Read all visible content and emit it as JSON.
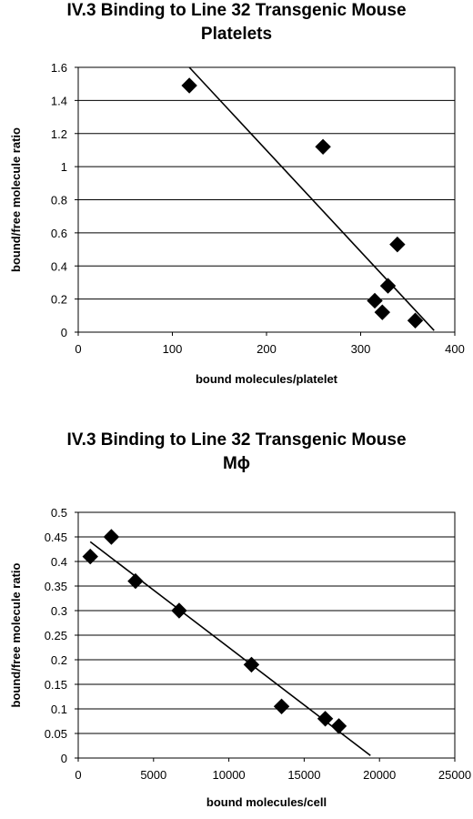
{
  "chart_data": [
    {
      "type": "scatter",
      "title_line1": "IV.3 Binding to Line 32 Transgenic Mouse",
      "title_line2": "Platelets",
      "xlabel": "bound molecules/platelet",
      "ylabel": "bound/free molecule ratio",
      "xlim": [
        0,
        400
      ],
      "ylim": [
        0,
        1.6
      ],
      "xticks": [
        0,
        100,
        200,
        300,
        400
      ],
      "xtick_labels": [
        "0",
        "100",
        "200",
        "300",
        "400"
      ],
      "yticks": [
        0,
        0.2,
        0.4,
        0.6,
        0.8,
        1,
        1.2,
        1.4,
        1.6
      ],
      "ytick_labels": [
        "0",
        "0.2",
        "0.4",
        "0.6",
        "0.8",
        "1",
        "1.2",
        "1.4",
        "1.6"
      ],
      "grid": "horizontal",
      "points": [
        {
          "x": 118,
          "y": 1.49
        },
        {
          "x": 260,
          "y": 1.12
        },
        {
          "x": 339,
          "y": 0.53
        },
        {
          "x": 329,
          "y": 0.28
        },
        {
          "x": 315,
          "y": 0.19
        },
        {
          "x": 323,
          "y": 0.12
        },
        {
          "x": 358,
          "y": 0.07
        }
      ],
      "trendline": {
        "x": [
          118,
          378
        ],
        "y": [
          1.6,
          0.01
        ]
      },
      "marker_color": "#000000"
    },
    {
      "type": "scatter",
      "title_line1": "IV.3 Binding to Line 32 Transgenic Mouse",
      "title_line2": "Mϕ",
      "xlabel": "bound molecules/cell",
      "ylabel": "bound/free molecule ratio",
      "xlim": [
        0,
        25000
      ],
      "ylim": [
        0,
        0.5
      ],
      "xticks": [
        0,
        5000,
        10000,
        15000,
        20000,
        25000
      ],
      "xtick_labels": [
        "0",
        "5000",
        "10000",
        "15000",
        "20000",
        "25000"
      ],
      "yticks": [
        0,
        0.05,
        0.1,
        0.15,
        0.2,
        0.25,
        0.3,
        0.35,
        0.4,
        0.45,
        0.5
      ],
      "ytick_labels": [
        "0",
        "0.05",
        "0.1",
        "0.15",
        "0.2",
        "0.25",
        "0.3",
        "0.35",
        "0.4",
        "0.45",
        "0.5"
      ],
      "grid": "horizontal",
      "points": [
        {
          "x": 800,
          "y": 0.41
        },
        {
          "x": 2200,
          "y": 0.45
        },
        {
          "x": 3800,
          "y": 0.36
        },
        {
          "x": 6700,
          "y": 0.3
        },
        {
          "x": 11500,
          "y": 0.19
        },
        {
          "x": 13500,
          "y": 0.105
        },
        {
          "x": 16400,
          "y": 0.08
        },
        {
          "x": 17300,
          "y": 0.065
        }
      ],
      "trendline": {
        "x": [
          800,
          19400
        ],
        "y": [
          0.44,
          0.005
        ]
      },
      "marker_color": "#000000"
    }
  ]
}
